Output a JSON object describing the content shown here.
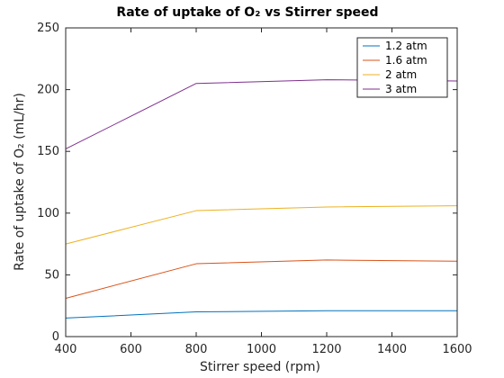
{
  "chart_data": {
    "type": "line",
    "title": "Rate of uptake of O₂ vs Stirrer speed",
    "xlabel": "Stirrer speed (rpm)",
    "ylabel": "Rate of uptake of O₂ (mL/hr)",
    "x": [
      400,
      800,
      1200,
      1600
    ],
    "xlim": [
      400,
      1600
    ],
    "ylim": [
      0,
      250
    ],
    "x_ticks": [
      400,
      600,
      800,
      1000,
      1200,
      1400,
      1600
    ],
    "y_ticks": [
      0,
      50,
      100,
      150,
      200,
      250
    ],
    "grid": false,
    "legend_position": "top-right",
    "series": [
      {
        "name": "1.2 atm",
        "color": "#0072BD",
        "values": [
          15,
          20,
          21,
          21
        ]
      },
      {
        "name": "1.6 atm",
        "color": "#D95319",
        "values": [
          31,
          59,
          62,
          61
        ]
      },
      {
        "name": "2 atm",
        "color": "#EDB120",
        "values": [
          75,
          102,
          105,
          106
        ]
      },
      {
        "name": "3 atm",
        "color": "#7E2F8E",
        "values": [
          152,
          205,
          208,
          207
        ]
      }
    ]
  }
}
